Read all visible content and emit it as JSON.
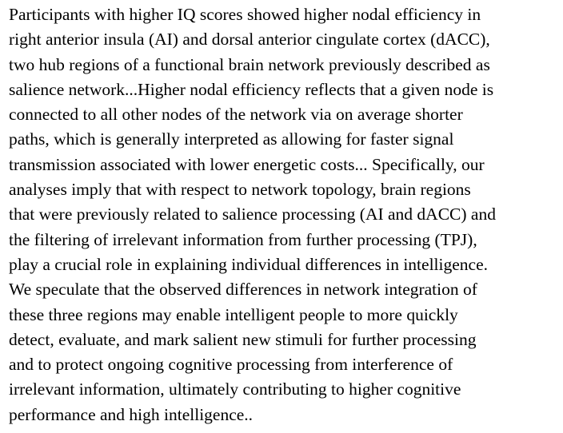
{
  "document": {
    "lines": [
      "Participants with higher IQ scores showed higher nodal efficiency in",
      "right anterior insula (AI) and dorsal anterior cingulate cortex (dACC),",
      "two hub regions of a functional brain network previously described as",
      "salience network...Higher nodal efficiency reflects that a given node is",
      "connected to all other nodes of the network via on average shorter",
      "paths, which is generally interpreted as allowing for faster signal",
      "transmission associated with lower energetic costs... Specifically, our",
      "analyses imply that with respect to network topology, brain regions",
      "that were previously related to salience processing (AI and dACC) and",
      "the filtering of irrelevant information from further processing (TPJ),",
      "play a crucial role in explaining individual differences in intelligence.",
      "We speculate that the observed differences in network integration of",
      "these three regions may enable intelligent people to more quickly",
      "detect, evaluate, and mark salient new stimuli for further processing",
      "and to protect ongoing cognitive processing from interference of",
      "irrelevant information, ultimately contributing to higher cognitive",
      "performance and high intelligence.."
    ]
  }
}
